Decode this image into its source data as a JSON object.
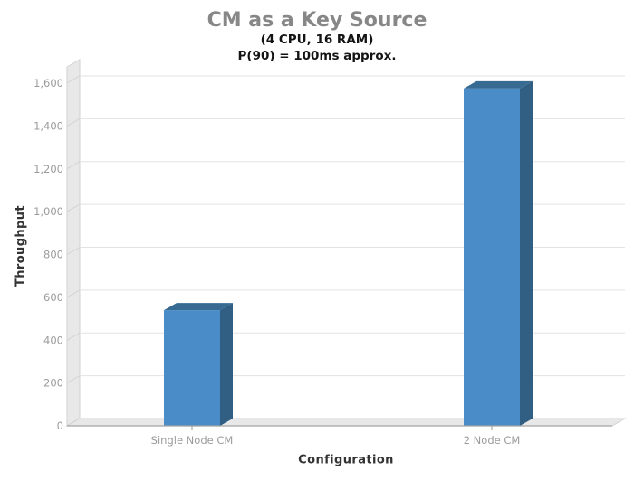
{
  "chart": {
    "title": "CM as a Key Source",
    "subtitle_line1": "(4 CPU, 16 RAM)",
    "subtitle_line2": "P(90) = 100ms approx.",
    "y_axis_title": "Throughput",
    "x_axis_title": "Configuration"
  },
  "chart_data": {
    "type": "bar",
    "style": "3d-column",
    "title": "CM as a Key Source",
    "subtitle": [
      "(4 CPU, 16 RAM)",
      "P(90) = 100ms approx."
    ],
    "categories": [
      "Single Node CM",
      "2 Node CM"
    ],
    "values": [
      540,
      1575
    ],
    "xlabel": "Configuration",
    "ylabel": "Throughput",
    "ylim": [
      0,
      1600
    ],
    "ytick_step": 200,
    "ytick_values": [
      0,
      200,
      400,
      600,
      800,
      1000,
      1200,
      1400,
      1600
    ],
    "ytick_labels": [
      "0",
      "200",
      "400",
      "600",
      "800",
      "1,000",
      "1,200",
      "1,400",
      "1,600"
    ],
    "grid": true,
    "legend": "none",
    "colors": {
      "bar_front": "#4a8cc7",
      "bar_top": "#386b92",
      "bar_side": "#315e83",
      "wall_fill": "#e8e8e8",
      "wall_edge": "#d2d2d2",
      "gridline": "#e3e3e3",
      "axis_line": "#a3a3a3",
      "tick_mark": "#999999",
      "tick_label": "#9b9b9b",
      "category_label": "#9b9b9b",
      "title_color": "#878787",
      "subtitle_color": "#141414",
      "axis_title_color": "#333333",
      "background": "#ffffff"
    }
  }
}
